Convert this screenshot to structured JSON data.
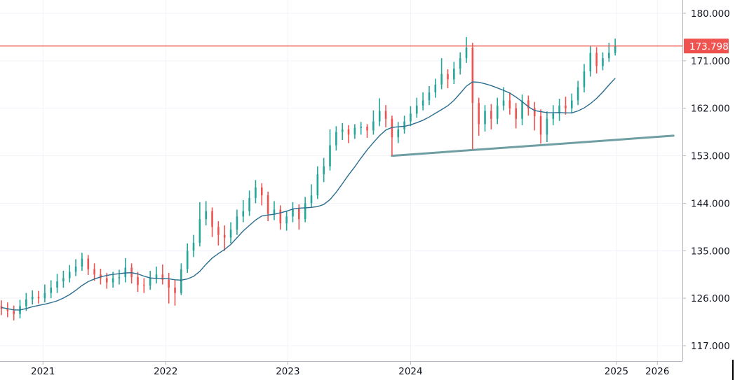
{
  "chart_data": {
    "type": "candlestick",
    "title": "",
    "colors": {
      "up": "#26a69a",
      "down": "#ef5350",
      "ma": "#2a6d8f",
      "trendline": "#6f9ea3",
      "price_line": "#ef5350",
      "grid": "#f0f3fa",
      "axis": "#b2b5be"
    },
    "y_axis": {
      "range": [
        115.0,
        182.5
      ],
      "ticks": [
        "180.000",
        "171.000",
        "162.000",
        "153.000",
        "144.000",
        "135.000",
        "126.000",
        "117.000"
      ],
      "tick_values": [
        180,
        171,
        162,
        153,
        144,
        135,
        126,
        117
      ],
      "side": "right"
    },
    "x_axis": {
      "range_bar_index": [
        -0.25,
        109.6
      ],
      "ticks": [
        {
          "label": "2021",
          "bar_index": 6.7
        },
        {
          "label": "2022",
          "bar_index": 26.5
        },
        {
          "label": "2023",
          "bar_index": 46.2
        },
        {
          "label": "2024",
          "bar_index": 66.0
        },
        {
          "label": "2025",
          "bar_index": 99.2
        },
        {
          "label": "2026",
          "bar_index": 105.8
        }
      ]
    },
    "last_price": 173.798,
    "last_price_label": "173.798",
    "moving_average_period": 10,
    "trendline": {
      "from": {
        "bar_index": 63,
        "price": 153.0
      },
      "to": {
        "bar_index": 108.4,
        "price": 156.8
      }
    },
    "bars_format": [
      "open",
      "high",
      "low",
      "close"
    ],
    "bars": [
      [
        124.5,
        125.6,
        122.8,
        124.0
      ],
      [
        124.0,
        125.2,
        122.4,
        123.6
      ],
      [
        123.6,
        124.6,
        121.8,
        123.0
      ],
      [
        123.0,
        125.7,
        122.2,
        124.5
      ],
      [
        124.5,
        127.0,
        123.6,
        125.8
      ],
      [
        125.8,
        127.5,
        124.8,
        126.3
      ],
      [
        126.3,
        127.4,
        125.0,
        126.0
      ],
      [
        126.0,
        128.6,
        125.2,
        127.0
      ],
      [
        127.0,
        129.4,
        126.0,
        128.0
      ],
      [
        128.0,
        130.6,
        127.0,
        129.2
      ],
      [
        129.2,
        131.2,
        128.0,
        129.8
      ],
      [
        129.8,
        132.3,
        129.0,
        131.0
      ],
      [
        131.0,
        133.4,
        130.2,
        132.0
      ],
      [
        132.0,
        134.6,
        131.2,
        133.5
      ],
      [
        133.5,
        134.2,
        130.4,
        131.5
      ],
      [
        131.5,
        132.6,
        129.3,
        130.5
      ],
      [
        130.5,
        131.6,
        128.6,
        129.8
      ],
      [
        129.8,
        130.8,
        127.8,
        129.0
      ],
      [
        129.0,
        131.0,
        128.0,
        129.8
      ],
      [
        129.8,
        131.4,
        128.6,
        130.0
      ],
      [
        130.0,
        133.6,
        129.0,
        131.8
      ],
      [
        131.8,
        132.6,
        128.8,
        130.0
      ],
      [
        130.0,
        131.0,
        127.2,
        128.5
      ],
      [
        128.5,
        129.8,
        127.0,
        128.4
      ],
      [
        128.4,
        131.2,
        127.6,
        129.8
      ],
      [
        129.8,
        132.0,
        128.8,
        130.5
      ],
      [
        130.5,
        132.4,
        128.6,
        129.5
      ],
      [
        129.5,
        130.8,
        125.0,
        128.0
      ],
      [
        128.0,
        129.4,
        124.6,
        127.0
      ],
      [
        127.0,
        132.6,
        126.6,
        131.5
      ],
      [
        131.5,
        136.4,
        130.8,
        135.0
      ],
      [
        135.0,
        138.0,
        133.8,
        136.5
      ],
      [
        136.5,
        144.2,
        135.8,
        141.0
      ],
      [
        141.0,
        144.4,
        139.8,
        142.5
      ],
      [
        142.5,
        143.2,
        137.6,
        139.5
      ],
      [
        139.5,
        140.6,
        136.0,
        138.0
      ],
      [
        138.0,
        139.8,
        135.0,
        137.5
      ],
      [
        137.5,
        140.4,
        136.4,
        139.0
      ],
      [
        139.0,
        142.8,
        138.0,
        141.5
      ],
      [
        141.5,
        144.6,
        140.4,
        142.5
      ],
      [
        142.5,
        146.4,
        141.6,
        145.0
      ],
      [
        145.0,
        148.4,
        144.0,
        147.0
      ],
      [
        147.0,
        147.8,
        143.6,
        145.5
      ],
      [
        145.5,
        146.2,
        140.6,
        142.0
      ],
      [
        142.0,
        144.4,
        140.8,
        142.8
      ],
      [
        142.8,
        143.6,
        139.0,
        140.2
      ],
      [
        140.2,
        142.6,
        138.8,
        141.5
      ],
      [
        141.5,
        144.2,
        140.4,
        143.0
      ],
      [
        143.0,
        143.8,
        139.0,
        141.0
      ],
      [
        141.0,
        145.2,
        140.4,
        144.0
      ],
      [
        144.0,
        147.6,
        143.2,
        145.5
      ],
      [
        145.5,
        151.0,
        144.8,
        149.5
      ],
      [
        149.5,
        152.6,
        148.0,
        151.0
      ],
      [
        151.0,
        158.0,
        150.2,
        155.0
      ],
      [
        155.0,
        158.6,
        154.0,
        157.5
      ],
      [
        157.5,
        159.2,
        156.0,
        158.0
      ],
      [
        158.0,
        158.8,
        155.4,
        157.0
      ],
      [
        157.0,
        159.0,
        156.2,
        158.3
      ],
      [
        158.3,
        159.4,
        157.0,
        158.5
      ],
      [
        158.5,
        159.0,
        156.4,
        157.8
      ],
      [
        157.8,
        161.6,
        157.0,
        159.5
      ],
      [
        159.5,
        163.9,
        158.6,
        161.5
      ],
      [
        161.5,
        162.6,
        158.4,
        160.0
      ],
      [
        160.0,
        160.6,
        153.0,
        156.5
      ],
      [
        156.5,
        159.4,
        155.4,
        158.0
      ],
      [
        158.0,
        160.6,
        157.2,
        159.5
      ],
      [
        159.5,
        162.4,
        158.6,
        161.0
      ],
      [
        161.0,
        164.0,
        160.2,
        162.5
      ],
      [
        162.5,
        165.0,
        161.6,
        163.5
      ],
      [
        163.5,
        166.2,
        162.6,
        165.0
      ],
      [
        165.0,
        167.6,
        164.0,
        166.5
      ],
      [
        166.5,
        171.5,
        165.6,
        168.5
      ],
      [
        168.5,
        169.4,
        165.8,
        167.5
      ],
      [
        167.5,
        170.8,
        166.6,
        169.5
      ],
      [
        169.5,
        172.6,
        168.4,
        171.5
      ],
      [
        171.5,
        175.5,
        170.6,
        173.5
      ],
      [
        173.5,
        174.4,
        154.2,
        163.0
      ],
      [
        163.0,
        164.0,
        156.8,
        159.0
      ],
      [
        159.0,
        162.6,
        157.6,
        161.5
      ],
      [
        161.5,
        162.8,
        158.0,
        160.0
      ],
      [
        160.0,
        164.0,
        159.0,
        162.5
      ],
      [
        162.5,
        166.0,
        161.6,
        163.5
      ],
      [
        163.5,
        165.0,
        160.8,
        162.0
      ],
      [
        162.0,
        163.0,
        158.2,
        160.0
      ],
      [
        160.0,
        164.6,
        158.8,
        163.5
      ],
      [
        163.5,
        164.4,
        160.6,
        162.0
      ],
      [
        162.0,
        163.2,
        157.8,
        160.5
      ],
      [
        160.5,
        161.8,
        155.3,
        157.0
      ],
      [
        157.0,
        161.4,
        155.6,
        160.0
      ],
      [
        160.0,
        162.6,
        158.8,
        161.0
      ],
      [
        161.0,
        163.8,
        159.6,
        162.5
      ],
      [
        162.5,
        164.2,
        160.8,
        162.0
      ],
      [
        162.0,
        164.8,
        161.0,
        163.5
      ],
      [
        163.5,
        167.2,
        162.6,
        166.0
      ],
      [
        166.0,
        170.4,
        165.0,
        169.0
      ],
      [
        169.0,
        173.8,
        168.0,
        172.5
      ],
      [
        172.5,
        173.6,
        168.6,
        170.0
      ],
      [
        170.0,
        172.6,
        169.2,
        171.5
      ],
      [
        171.5,
        174.4,
        170.8,
        172.5
      ],
      [
        172.5,
        175.2,
        172.0,
        173.798
      ]
    ]
  }
}
